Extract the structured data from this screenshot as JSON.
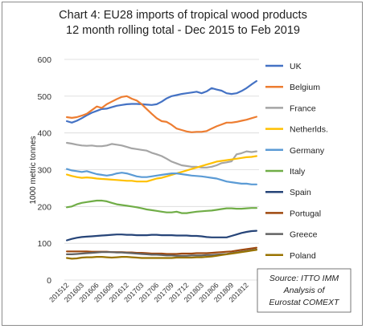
{
  "chart_data": {
    "type": "line",
    "title": "Chart 4: EU28 imports of tropical wood products",
    "subtitle": "12 month rolling total - Dec 2015 to Feb 2019",
    "xlabel": "",
    "ylabel": "1000 metric tonnes",
    "ylim": [
      0,
      600
    ],
    "yticks": [
      0,
      100,
      200,
      300,
      400,
      500,
      600
    ],
    "grid": "horizontal",
    "legend_position": "right",
    "x": [
      "201512",
      "201601",
      "201602",
      "201603",
      "201604",
      "201605",
      "201606",
      "201607",
      "201608",
      "201609",
      "201610",
      "201611",
      "201612",
      "201701",
      "201702",
      "201703",
      "201704",
      "201705",
      "201706",
      "201707",
      "201708",
      "201709",
      "201710",
      "201711",
      "201712",
      "201801",
      "201802",
      "201803",
      "201804",
      "201805",
      "201806",
      "201807",
      "201808",
      "201809",
      "201810",
      "201811",
      "201812",
      "201901",
      "201902"
    ],
    "xticklabels": [
      "201512",
      "201603",
      "201606",
      "201609",
      "201612",
      "201703",
      "201706",
      "201709",
      "201712",
      "201803",
      "201806",
      "201809",
      "201812"
    ],
    "series": [
      {
        "name": "UK",
        "color": "#4472c4",
        "values": [
          432,
          428,
          433,
          440,
          448,
          455,
          460,
          465,
          466,
          470,
          474,
          476,
          478,
          479,
          479,
          478,
          477,
          476,
          478,
          485,
          494,
          500,
          503,
          506,
          508,
          510,
          512,
          508,
          513,
          522,
          518,
          515,
          508,
          506,
          508,
          514,
          522,
          532,
          541
        ]
      },
      {
        "name": "Belgium",
        "color": "#ed7d31",
        "values": [
          443,
          441,
          443,
          447,
          452,
          462,
          472,
          468,
          478,
          485,
          492,
          498,
          500,
          493,
          488,
          478,
          465,
          452,
          440,
          432,
          430,
          422,
          412,
          408,
          404,
          402,
          403,
          403,
          405,
          412,
          418,
          423,
          428,
          428,
          430,
          433,
          436,
          440,
          444
        ]
      },
      {
        "name": "France",
        "color": "#a5a5a5",
        "values": [
          373,
          371,
          368,
          366,
          365,
          366,
          364,
          364,
          366,
          370,
          368,
          366,
          362,
          358,
          356,
          354,
          352,
          346,
          342,
          337,
          330,
          322,
          317,
          312,
          310,
          308,
          308,
          306,
          306,
          308,
          312,
          318,
          320,
          323,
          342,
          345,
          350,
          348,
          350
        ]
      },
      {
        "name": "Netherlds.",
        "color": "#ffc000",
        "values": [
          287,
          283,
          280,
          278,
          279,
          278,
          276,
          275,
          274,
          273,
          272,
          271,
          270,
          270,
          268,
          268,
          268,
          272,
          276,
          278,
          282,
          286,
          290,
          294,
          298,
          302,
          306,
          310,
          314,
          318,
          322,
          324,
          326,
          328,
          330,
          332,
          334,
          335,
          337
        ]
      },
      {
        "name": "Germany",
        "color": "#5b9bd5",
        "values": [
          302,
          298,
          296,
          294,
          296,
          292,
          288,
          286,
          284,
          286,
          290,
          292,
          290,
          286,
          282,
          280,
          280,
          282,
          284,
          286,
          288,
          290,
          290,
          288,
          286,
          284,
          283,
          282,
          280,
          278,
          276,
          272,
          268,
          266,
          264,
          262,
          262,
          260,
          260
        ]
      },
      {
        "name": "Italy",
        "color": "#70ad47",
        "values": [
          198,
          200,
          206,
          210,
          212,
          214,
          216,
          216,
          214,
          210,
          206,
          204,
          202,
          200,
          198,
          195,
          192,
          190,
          188,
          186,
          184,
          184,
          186,
          182,
          182,
          184,
          186,
          187,
          188,
          189,
          191,
          193,
          195,
          195,
          194,
          194,
          195,
          196,
          196
        ]
      },
      {
        "name": "Spain",
        "color": "#264478",
        "values": [
          108,
          112,
          115,
          117,
          118,
          119,
          120,
          121,
          122,
          123,
          124,
          124,
          123,
          123,
          122,
          122,
          122,
          123,
          123,
          122,
          122,
          122,
          121,
          121,
          121,
          120,
          120,
          119,
          117,
          116,
          116,
          116,
          116,
          120,
          124,
          128,
          131,
          133,
          134
        ]
      },
      {
        "name": "Portugal",
        "color": "#9e480e",
        "values": [
          78,
          78,
          78,
          78,
          78,
          77,
          77,
          77,
          77,
          76,
          76,
          76,
          75,
          75,
          74,
          74,
          73,
          72,
          72,
          72,
          71,
          71,
          71,
          72,
          72,
          72,
          73,
          73,
          73,
          74,
          75,
          76,
          77,
          78,
          80,
          82,
          84,
          86,
          88
        ]
      },
      {
        "name": "Greece",
        "color": "#636363",
        "values": [
          70,
          70,
          71,
          72,
          73,
          74,
          75,
          76,
          76,
          76,
          75,
          75,
          74,
          73,
          72,
          71,
          70,
          69,
          69,
          68,
          67,
          67,
          66,
          66,
          66,
          67,
          67,
          67,
          68,
          68,
          69,
          70,
          71,
          73,
          75,
          77,
          79,
          81,
          83
        ]
      },
      {
        "name": "Poland",
        "color": "#997300",
        "values": [
          60,
          58,
          59,
          61,
          62,
          62,
          63,
          63,
          62,
          61,
          62,
          63,
          63,
          62,
          61,
          60,
          60,
          60,
          60,
          60,
          60,
          60,
          61,
          61,
          61,
          61,
          62,
          62,
          63,
          64,
          66,
          68,
          70,
          72,
          74,
          76,
          78,
          80,
          82
        ]
      }
    ],
    "annotation": [
      "Source: ITTO IMM",
      "Analysis of",
      "Eurostat COMEXT"
    ]
  }
}
